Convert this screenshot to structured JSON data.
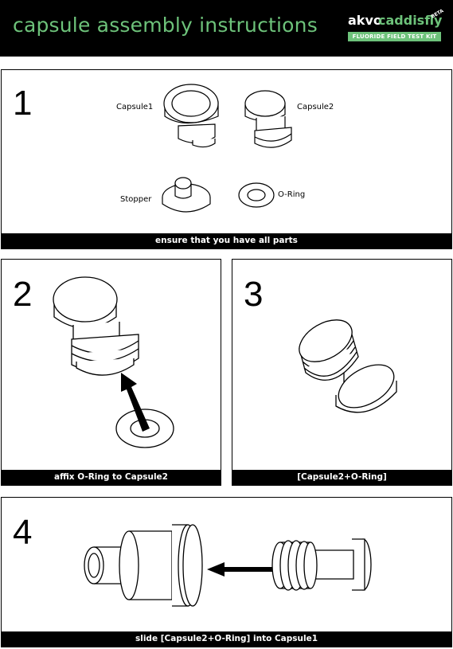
{
  "header": {
    "title": "capsule assembly instructions",
    "brand": {
      "akvo": "akvo",
      "caddisfly": "caddisfly",
      "beta": "BETA",
      "kit": "FLUORIDE FIELD TEST KIT"
    }
  },
  "colors": {
    "accent": "#6dc27a",
    "background": "#000000"
  },
  "steps": [
    {
      "number": "1",
      "caption": "ensure that you have all parts",
      "labels": {
        "capsule1": "Capsule1",
        "capsule2": "Capsule2",
        "stopper": "Stopper",
        "oring": "O-Ring"
      }
    },
    {
      "number": "2",
      "caption": "affix O-Ring to Capsule2"
    },
    {
      "number": "3",
      "caption": "[Capsule2+O-Ring]"
    },
    {
      "number": "4",
      "caption": "slide [Capsule2+O-Ring] into Capsule1"
    }
  ]
}
